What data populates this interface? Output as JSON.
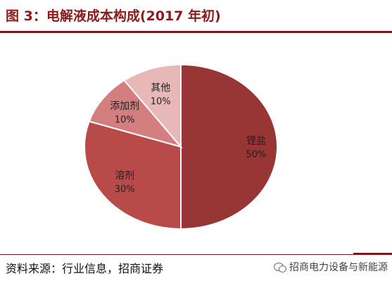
{
  "header": {
    "title": "图 3：电解液成本构成(2017 年初)"
  },
  "footer": {
    "source": "资料来源：行业信息，招商证券",
    "watermark": "招商电力设备与新能源",
    "watermark_icon": "wechat-icon"
  },
  "chart_data": {
    "type": "pie",
    "title": "图 3：电解液成本构成(2017 年初)",
    "slices": [
      {
        "name": "锂盐",
        "value": 50,
        "label": "50%",
        "color": "#983535"
      },
      {
        "name": "溶剂",
        "value": 30,
        "label": "30%",
        "color": "#b94a4a"
      },
      {
        "name": "添加剂",
        "value": 10,
        "label": "10%",
        "color": "#d47f7f"
      },
      {
        "name": "其他",
        "value": 10,
        "label": "10%",
        "color": "#e8b8b8"
      }
    ],
    "border_color": "#ffffff"
  }
}
